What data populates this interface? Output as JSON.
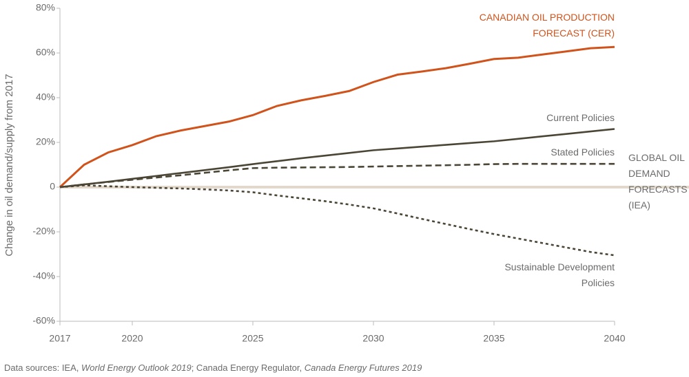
{
  "chart_data": {
    "type": "line",
    "y_label": "Change in oil demand/supply from 2017",
    "source": [
      "Data sources: IEA, ",
      "World Energy Outlook 2019",
      "; Canada Energy Regulator, ",
      "Canada Energy Futures 2019"
    ],
    "annotation": "GLOBAL OIL DEMAND FORECASTS (IEA)",
    "x": [
      2017,
      2018,
      2019,
      2020,
      2021,
      2022,
      2023,
      2024,
      2025,
      2026,
      2027,
      2028,
      2029,
      2030,
      2031,
      2032,
      2033,
      2034,
      2035,
      2036,
      2037,
      2038,
      2039,
      2040
    ],
    "xlim": [
      2017,
      2040
    ],
    "xticks": [
      2017,
      2020,
      2025,
      2030,
      2035,
      2040
    ],
    "ylim": [
      -60,
      80
    ],
    "yticks": [
      {
        "value": 80,
        "label": "80%"
      },
      {
        "value": 60,
        "label": "60%"
      },
      {
        "value": 40,
        "label": "40%"
      },
      {
        "value": 20,
        "label": "20%"
      },
      0,
      {
        "value": -20,
        "label": "-20%"
      },
      {
        "value": -40,
        "label": "-40%"
      },
      {
        "value": -60,
        "label": "-60%"
      }
    ],
    "series": [
      {
        "name": "CANADIAN OIL PRODUCTION FORECAST (CER)",
        "color": "#d0531c",
        "style": "solid",
        "values": [
          0,
          10,
          15.5,
          18.8,
          22.8,
          25.3,
          27.3,
          29.3,
          32.2,
          36.3,
          38.8,
          40.8,
          43,
          47,
          50.3,
          51.7,
          53.2,
          55.2,
          57.3,
          57.9,
          59.3,
          60.7,
          62.1,
          62.7
        ]
      },
      {
        "name": "Current Policies",
        "color": "#4a4535",
        "style": "solid",
        "values": [
          0,
          1.2,
          2.4,
          3.7,
          5,
          6.3,
          7.6,
          8.9,
          10.3,
          11.6,
          12.9,
          14.1,
          15.3,
          16.5,
          17.3,
          18.1,
          18.9,
          19.7,
          20.5,
          21.6,
          22.7,
          23.8,
          24.9,
          26
        ]
      },
      {
        "name": "Stated Policies",
        "color": "#4a4535",
        "style": "dashed",
        "values": [
          0,
          1.2,
          2.3,
          3.3,
          4.3,
          5.3,
          6.4,
          7.5,
          8.5,
          8.7,
          8.8,
          8.9,
          9,
          9.2,
          9.4,
          9.6,
          9.8,
          10,
          10.3,
          10.4,
          10.4,
          10.4,
          10.4,
          10.4
        ]
      },
      {
        "name": "Sustainable Development Policies",
        "color": "#4a4535",
        "style": "dotted",
        "values": [
          0,
          0.8,
          0.4,
          0,
          -0.3,
          -0.6,
          -1,
          -1.5,
          -2.3,
          -3.7,
          -5,
          -6.3,
          -7.8,
          -9.5,
          -11.8,
          -14.2,
          -16.5,
          -18.8,
          -21,
          -23,
          -25,
          -27,
          -29,
          -30.5
        ]
      }
    ]
  }
}
